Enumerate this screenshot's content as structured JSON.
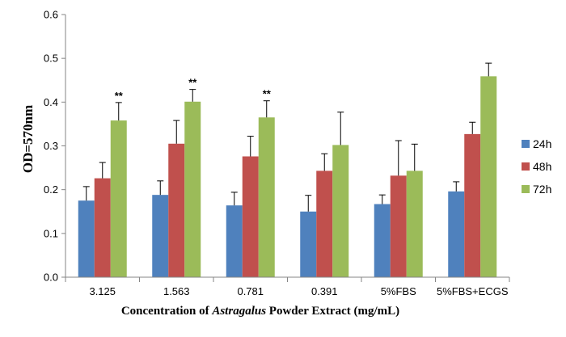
{
  "chart_data": {
    "type": "bar",
    "xlabel_parts": {
      "before": "Concentration of ",
      "italic": "Astragalus",
      "after": " Powder Extract (mg/mL)"
    },
    "ylabel": "OD=570nm",
    "ylim": [
      0,
      0.6
    ],
    "yticks": [
      "0.0",
      "0.1",
      "0.2",
      "0.3",
      "0.4",
      "0.5",
      "0.6"
    ],
    "categories": [
      "3.125",
      "1.563",
      "0.781",
      "0.391",
      "5%FBS",
      "5%FBS+ECGS"
    ],
    "series": [
      {
        "name": "24h",
        "color": "#4F81BD",
        "values": [
          0.175,
          0.188,
          0.164,
          0.15,
          0.167,
          0.196
        ],
        "errors": [
          0.032,
          0.032,
          0.03,
          0.037,
          0.021,
          0.022
        ]
      },
      {
        "name": "48h",
        "color": "#C0504D",
        "values": [
          0.226,
          0.305,
          0.276,
          0.243,
          0.232,
          0.327
        ],
        "errors": [
          0.036,
          0.053,
          0.046,
          0.039,
          0.08,
          0.027
        ]
      },
      {
        "name": "72h",
        "color": "#9BBB59",
        "values": [
          0.358,
          0.401,
          0.365,
          0.302,
          0.243,
          0.459
        ],
        "errors": [
          0.041,
          0.028,
          0.038,
          0.075,
          0.061,
          0.03
        ]
      }
    ],
    "annotations": [
      {
        "category_index": 0,
        "series_index": 2,
        "text": "**"
      },
      {
        "category_index": 1,
        "series_index": 2,
        "text": "**"
      },
      {
        "category_index": 2,
        "series_index": 2,
        "text": "**"
      }
    ],
    "legend_position": "right",
    "grid": false
  }
}
